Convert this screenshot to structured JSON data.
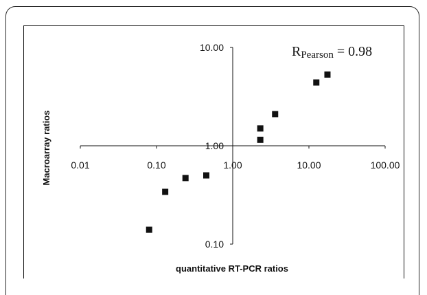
{
  "chart_data": {
    "type": "scatter",
    "xlabel": "quantitative RT-PCR ratios",
    "ylabel": "Macroarray ratios",
    "xscale": "log",
    "yscale": "log",
    "xlim": [
      0.01,
      100
    ],
    "ylim": [
      0.1,
      10
    ],
    "x_ticks": [
      "0.01",
      "0.10",
      "1.00",
      "10.00",
      "100.00"
    ],
    "y_ticks": [
      "0.10",
      "1.00",
      "10.00"
    ],
    "annotation": {
      "prefix": "R",
      "subscript": "Pearson",
      "suffix": " = 0.98"
    },
    "points": [
      {
        "x": 0.08,
        "y": 0.14
      },
      {
        "x": 0.13,
        "y": 0.34
      },
      {
        "x": 0.24,
        "y": 0.47
      },
      {
        "x": 0.45,
        "y": 0.5
      },
      {
        "x": 2.3,
        "y": 1.15
      },
      {
        "x": 2.3,
        "y": 1.5
      },
      {
        "x": 3.6,
        "y": 2.1
      },
      {
        "x": 12.5,
        "y": 4.4
      },
      {
        "x": 17.5,
        "y": 5.3
      }
    ],
    "grid": false,
    "marker": "square",
    "marker_color": "#111111"
  }
}
